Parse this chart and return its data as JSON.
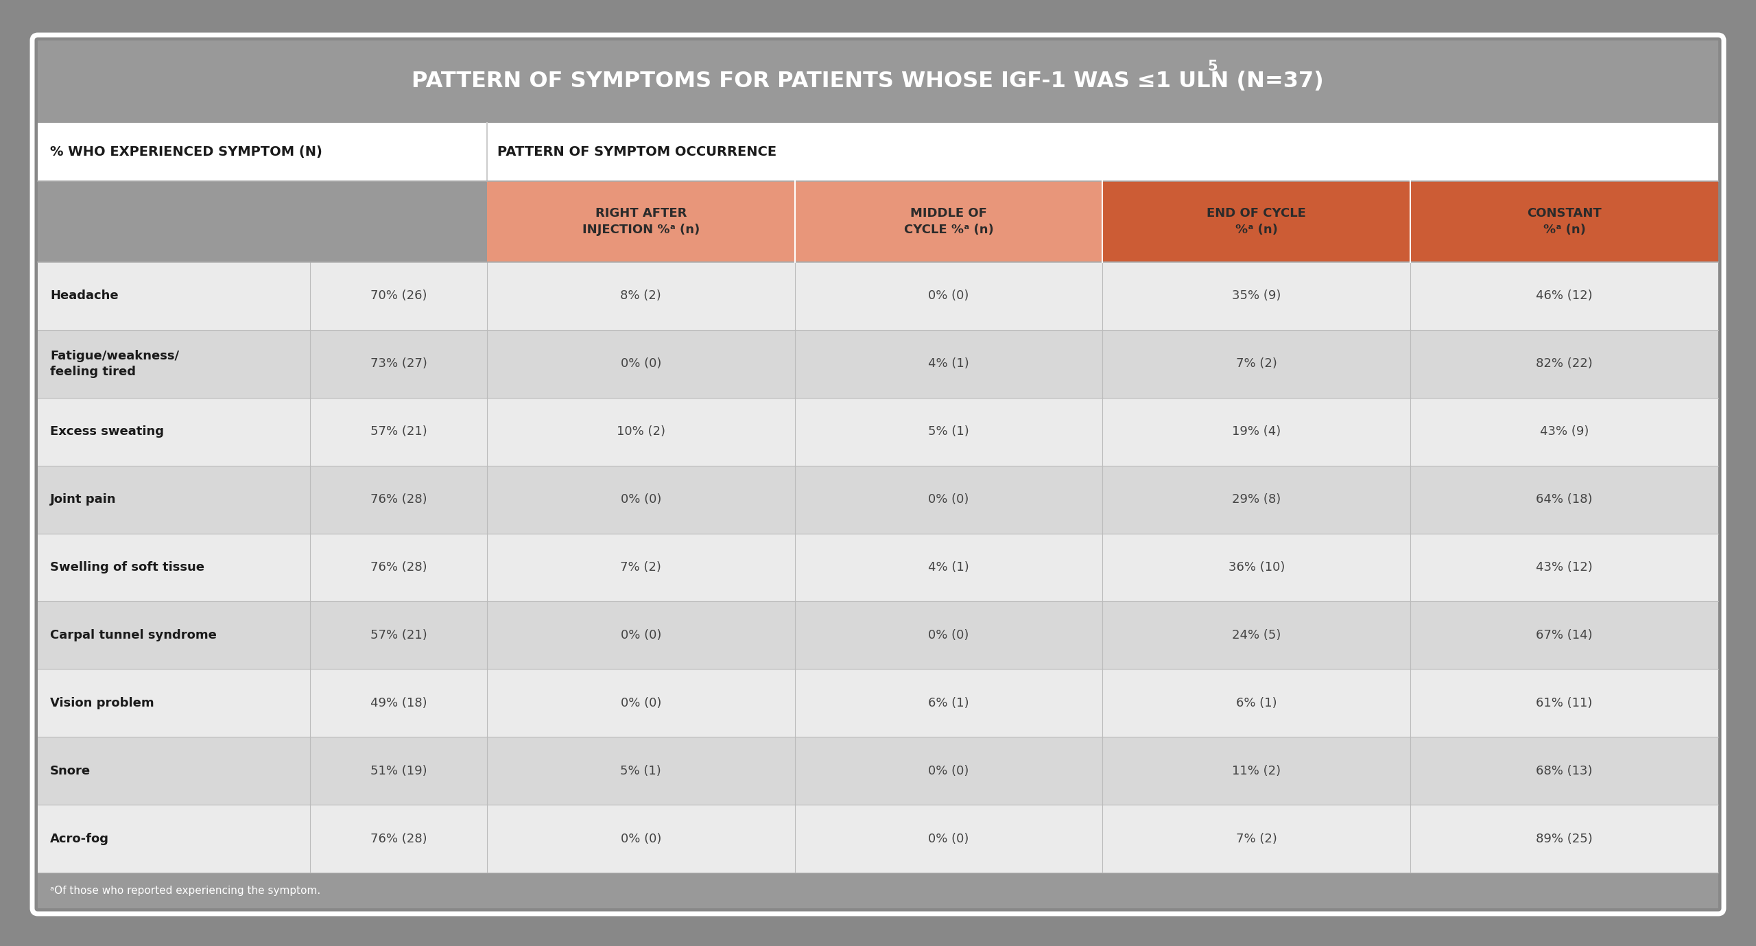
{
  "title": "PATTERN OF SYMPTOMS FOR PATIENTS WHOSE IGF-1 WAS ≤1 ULN (N=37)",
  "title_superscript": "5",
  "title_bg": "#999999",
  "title_color": "#ffffff",
  "header1_left": "% WHO EXPERIENCED SYMPTOM (N)",
  "header1_right": "PATTERN OF SYMPTOM OCCURRENCE",
  "col_headers": [
    "RIGHT AFTER\nINJECTION %ᵃ (n)",
    "MIDDLE OF\nCYCLE %ᵃ (n)",
    "END OF CYCLE\n%ᵃ (n)",
    "CONSTANT\n%ᵃ (n)"
  ],
  "col_header_colors": [
    "#e8967a",
    "#e8967a",
    "#cc5c35",
    "#cc5c35"
  ],
  "col_header_text_color": "#2b2b2b",
  "symptoms": [
    "Headache",
    "Fatigue/weakness/\nfeeling tired",
    "Excess sweating",
    "Joint pain",
    "Swelling of soft tissue",
    "Carpal tunnel syndrome",
    "Vision problem",
    "Snore",
    "Acro-fog"
  ],
  "prevalence": [
    "70% (26)",
    "73% (27)",
    "57% (21)",
    "76% (28)",
    "76% (28)",
    "57% (21)",
    "49% (18)",
    "51% (19)",
    "76% (28)"
  ],
  "data": [
    [
      "8% (2)",
      "0% (0)",
      "35% (9)",
      "46% (12)"
    ],
    [
      "0% (0)",
      "4% (1)",
      "7% (2)",
      "82% (22)"
    ],
    [
      "10% (2)",
      "5% (1)",
      "19% (4)",
      "43% (9)"
    ],
    [
      "0% (0)",
      "0% (0)",
      "29% (8)",
      "64% (18)"
    ],
    [
      "7% (2)",
      "4% (1)",
      "36% (10)",
      "43% (12)"
    ],
    [
      "0% (0)",
      "0% (0)",
      "24% (5)",
      "67% (14)"
    ],
    [
      "0% (0)",
      "6% (1)",
      "6% (1)",
      "61% (11)"
    ],
    [
      "5% (1)",
      "0% (0)",
      "11% (2)",
      "68% (13)"
    ],
    [
      "0% (0)",
      "0% (0)",
      "7% (2)",
      "89% (25)"
    ]
  ],
  "row_colors": [
    "#ebebeb",
    "#d8d8d8"
  ],
  "outer_bg": "#888888",
  "footnote": "ᵃOf those who reported experiencing the symptom.",
  "footnote_bg": "#999999"
}
